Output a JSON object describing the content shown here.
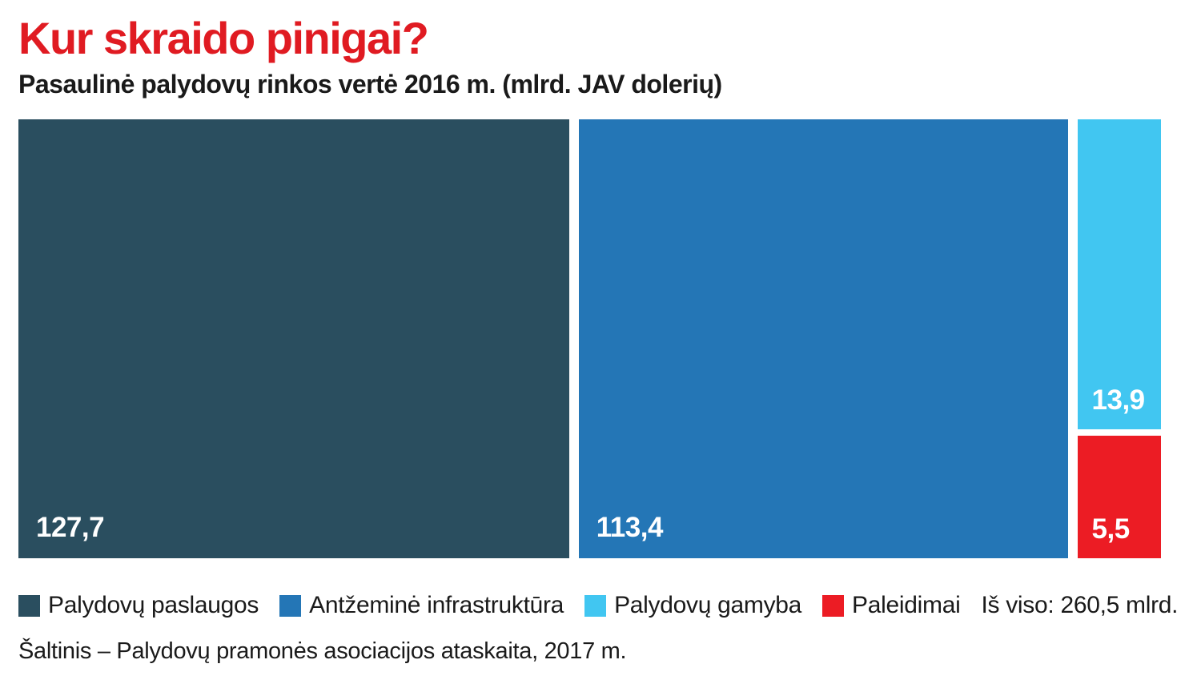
{
  "header": {
    "title": "Kur skraido pinigai?",
    "title_color": "#E01B22",
    "subtitle": "Pasaulinė palydovų rinkos vertė 2016 m. (mlrd. JAV dolerių)"
  },
  "chart_data": {
    "type": "treemap",
    "title": "Kur skraido pinigai?",
    "subtitle": "Pasaulinė palydovų rinkos vertė 2016 m. (mlrd. JAV dolerių)",
    "unit": "mlrd. JAV dolerių",
    "year": "2016",
    "total": 260.5,
    "legend_position": "bottom",
    "segments": [
      {
        "label": "Palydovų paslaugos",
        "value": 127.7,
        "value_label": "127,7",
        "color": "#2A4E5F",
        "position": "left-full-height"
      },
      {
        "label": "Antžeminė infrastruktūra",
        "value": 113.4,
        "value_label": "113,4",
        "color": "#2476B6",
        "position": "middle-full-height"
      },
      {
        "label": "Palydovų gamyba",
        "value": 13.9,
        "value_label": "13,9",
        "color": "#41C6F1",
        "position": "right-column-top"
      },
      {
        "label": "Paleidimai",
        "value": 5.5,
        "value_label": "5,5",
        "color": "#EC1C24",
        "position": "right-column-bottom"
      }
    ]
  },
  "legend": {
    "total_label": "Iš viso: 260,5 mlrd."
  },
  "source": "Šaltinis – Palydovų pramonės asociacijos ataskaita, 2017 m."
}
